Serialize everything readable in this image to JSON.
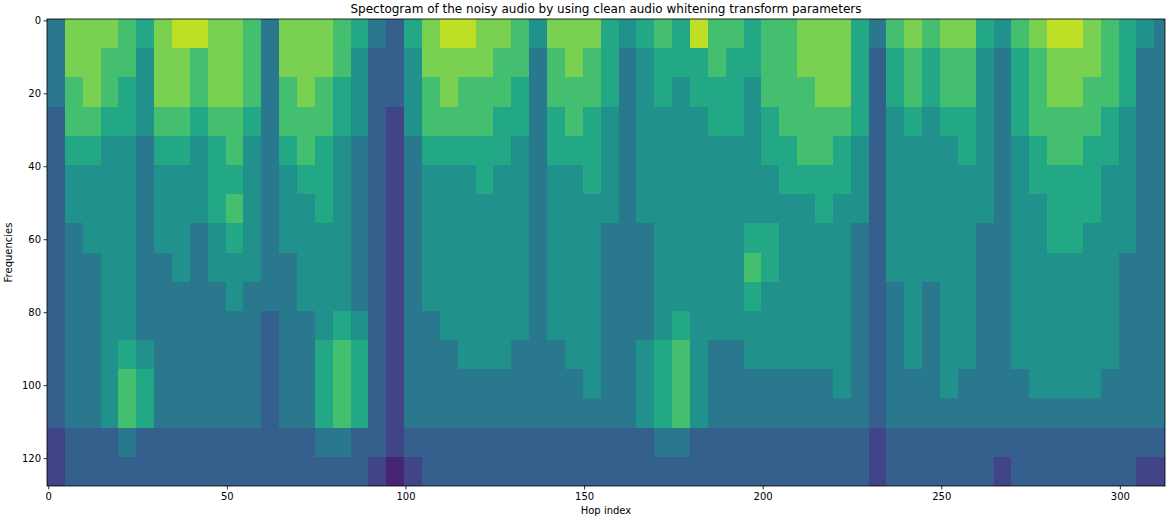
{
  "chart_data": {
    "type": "heatmap",
    "title": "Spectogram of the noisy audio by using clean audio whitening transform parameters",
    "x_label": "Hop index",
    "y_label": "Frequencies",
    "xlim": [
      -0.5,
      312.5
    ],
    "ylim": [
      127.5,
      -0.5
    ],
    "xticks": [
      0,
      50,
      100,
      150,
      200,
      250,
      300
    ],
    "yticks": [
      0,
      20,
      40,
      60,
      80,
      100,
      120
    ],
    "color_range": [
      0,
      10
    ],
    "x_edges": [
      -0.5,
      4.5,
      9.5,
      14.5,
      19.5,
      24.5,
      29.5,
      34.5,
      39.5,
      44.5,
      49.5,
      54.5,
      59.5,
      64.5,
      69.5,
      74.5,
      79.5,
      84.5,
      89.5,
      94.5,
      99.5,
      104.5,
      109.5,
      114.5,
      119.5,
      124.5,
      129.5,
      134.5,
      139.5,
      144.5,
      149.5,
      154.5,
      159.5,
      164.5,
      169.5,
      174.5,
      179.5,
      184.5,
      189.5,
      194.5,
      199.5,
      204.5,
      209.5,
      214.5,
      219.5,
      224.5,
      229.5,
      234.5,
      239.5,
      244.5,
      249.5,
      254.5,
      259.5,
      264.5,
      269.5,
      274.5,
      279.5,
      284.5,
      289.5,
      294.5,
      299.5,
      304.5,
      309.5,
      314.5
    ],
    "y_edges": [
      -0.5,
      7.5,
      15.5,
      23.5,
      31.5,
      39.5,
      47.5,
      55.5,
      63.5,
      71.5,
      79.5,
      87.5,
      95.5,
      103.5,
      111.5,
      119.5,
      127.5
    ],
    "cells": [
      [
        4,
        4,
        4,
        3,
        3,
        3,
        3,
        3,
        3,
        3,
        3,
        3,
        3,
        3,
        2,
        2
      ],
      [
        8,
        8,
        7,
        7,
        6,
        5,
        5,
        4,
        4,
        4,
        4,
        4,
        4,
        4,
        3,
        3
      ],
      [
        8,
        8,
        8,
        7,
        6,
        5,
        5,
        5,
        4,
        4,
        4,
        4,
        4,
        4,
        3,
        3
      ],
      [
        8,
        7,
        7,
        6,
        5,
        5,
        5,
        5,
        5,
        5,
        5,
        5,
        5,
        5,
        3,
        3
      ],
      [
        7,
        7,
        6,
        6,
        5,
        5,
        5,
        5,
        5,
        5,
        5,
        6,
        7,
        7,
        4,
        3
      ],
      [
        6,
        5,
        5,
        5,
        4,
        4,
        4,
        4,
        4,
        4,
        4,
        5,
        6,
        6,
        3,
        3
      ],
      [
        8,
        8,
        8,
        7,
        6,
        5,
        5,
        5,
        4,
        4,
        4,
        4,
        4,
        4,
        3,
        3
      ],
      [
        9,
        8,
        8,
        7,
        6,
        5,
        5,
        5,
        5,
        4,
        4,
        4,
        4,
        4,
        3,
        3
      ],
      [
        9,
        7,
        7,
        6,
        5,
        5,
        5,
        4,
        4,
        4,
        4,
        4,
        4,
        4,
        3,
        3
      ],
      [
        8,
        8,
        8,
        7,
        6,
        6,
        6,
        5,
        5,
        4,
        4,
        4,
        4,
        4,
        3,
        3
      ],
      [
        8,
        8,
        8,
        7,
        7,
        6,
        7,
        6,
        5,
        5,
        4,
        4,
        4,
        4,
        3,
        3
      ],
      [
        7,
        7,
        7,
        6,
        5,
        5,
        5,
        5,
        5,
        4,
        4,
        4,
        4,
        4,
        3,
        3
      ],
      [
        4,
        4,
        4,
        4,
        4,
        4,
        4,
        4,
        4,
        4,
        3,
        3,
        3,
        3,
        3,
        3
      ],
      [
        8,
        8,
        7,
        7,
        6,
        5,
        5,
        5,
        4,
        4,
        4,
        4,
        4,
        4,
        3,
        3
      ],
      [
        8,
        8,
        8,
        7,
        7,
        6,
        5,
        5,
        5,
        5,
        4,
        4,
        4,
        4,
        3,
        3
      ],
      [
        8,
        8,
        7,
        7,
        6,
        6,
        6,
        5,
        5,
        5,
        5,
        6,
        6,
        6,
        4,
        3
      ],
      [
        7,
        7,
        6,
        6,
        5,
        5,
        5,
        5,
        5,
        5,
        6,
        7,
        7,
        7,
        4,
        3
      ],
      [
        6,
        5,
        5,
        5,
        4,
        4,
        4,
        4,
        4,
        4,
        5,
        6,
        6,
        6,
        3,
        3
      ],
      [
        4,
        3,
        3,
        3,
        3,
        3,
        3,
        3,
        3,
        3,
        3,
        3,
        3,
        3,
        3,
        2
      ],
      [
        3,
        3,
        3,
        2,
        2,
        2,
        2,
        2,
        2,
        2,
        2,
        2,
        2,
        2,
        2,
        1
      ],
      [
        6,
        5,
        5,
        5,
        4,
        4,
        4,
        4,
        4,
        4,
        4,
        4,
        4,
        4,
        3,
        2
      ],
      [
        8,
        8,
        7,
        7,
        6,
        5,
        5,
        5,
        5,
        5,
        4,
        4,
        4,
        4,
        3,
        3
      ],
      [
        9,
        8,
        8,
        7,
        6,
        5,
        5,
        5,
        5,
        5,
        5,
        4,
        4,
        4,
        3,
        3
      ],
      [
        9,
        8,
        7,
        7,
        6,
        5,
        5,
        5,
        5,
        5,
        5,
        5,
        4,
        4,
        3,
        3
      ],
      [
        8,
        8,
        7,
        7,
        6,
        6,
        5,
        5,
        5,
        5,
        5,
        5,
        4,
        4,
        3,
        3
      ],
      [
        8,
        7,
        7,
        6,
        6,
        5,
        5,
        5,
        5,
        5,
        5,
        5,
        4,
        4,
        3,
        3
      ],
      [
        7,
        7,
        6,
        6,
        5,
        5,
        5,
        5,
        5,
        5,
        5,
        4,
        4,
        4,
        3,
        3
      ],
      [
        5,
        4,
        4,
        4,
        4,
        4,
        4,
        4,
        4,
        4,
        4,
        4,
        4,
        4,
        3,
        3
      ],
      [
        8,
        7,
        7,
        6,
        6,
        5,
        5,
        5,
        5,
        5,
        5,
        4,
        4,
        4,
        3,
        3
      ],
      [
        8,
        8,
        7,
        7,
        6,
        5,
        5,
        5,
        5,
        5,
        5,
        5,
        4,
        4,
        3,
        3
      ],
      [
        8,
        7,
        7,
        6,
        6,
        6,
        5,
        5,
        5,
        5,
        5,
        5,
        5,
        4,
        3,
        3
      ],
      [
        6,
        6,
        6,
        5,
        5,
        5,
        5,
        4,
        4,
        4,
        4,
        4,
        4,
        4,
        3,
        3
      ],
      [
        5,
        4,
        4,
        4,
        4,
        4,
        4,
        4,
        4,
        4,
        4,
        4,
        4,
        4,
        3,
        3
      ],
      [
        6,
        5,
        5,
        5,
        5,
        5,
        5,
        4,
        4,
        4,
        4,
        5,
        5,
        5,
        3,
        3
      ],
      [
        7,
        6,
        6,
        5,
        5,
        5,
        5,
        5,
        5,
        5,
        5,
        6,
        6,
        6,
        4,
        3
      ],
      [
        6,
        6,
        5,
        5,
        5,
        5,
        5,
        5,
        5,
        5,
        6,
        7,
        7,
        7,
        4,
        3
      ],
      [
        9,
        6,
        6,
        5,
        5,
        5,
        5,
        5,
        5,
        5,
        5,
        5,
        5,
        5,
        3,
        3
      ],
      [
        7,
        7,
        6,
        6,
        5,
        5,
        5,
        5,
        5,
        5,
        5,
        4,
        4,
        4,
        3,
        3
      ],
      [
        7,
        6,
        6,
        6,
        5,
        5,
        5,
        5,
        5,
        5,
        5,
        4,
        4,
        4,
        3,
        3
      ],
      [
        6,
        6,
        5,
        5,
        5,
        5,
        5,
        6,
        7,
        6,
        5,
        5,
        4,
        4,
        3,
        3
      ],
      [
        7,
        7,
        7,
        6,
        6,
        5,
        5,
        6,
        6,
        5,
        5,
        5,
        4,
        4,
        3,
        3
      ],
      [
        7,
        7,
        7,
        7,
        6,
        6,
        5,
        5,
        5,
        5,
        5,
        5,
        4,
        4,
        3,
        3
      ],
      [
        8,
        8,
        7,
        7,
        7,
        6,
        5,
        5,
        5,
        5,
        5,
        5,
        4,
        4,
        3,
        3
      ],
      [
        8,
        8,
        8,
        7,
        7,
        6,
        6,
        5,
        5,
        5,
        5,
        5,
        4,
        4,
        3,
        3
      ],
      [
        8,
        8,
        8,
        7,
        6,
        6,
        5,
        5,
        5,
        5,
        5,
        5,
        5,
        4,
        3,
        3
      ],
      [
        6,
        6,
        6,
        6,
        5,
        5,
        5,
        4,
        4,
        4,
        4,
        4,
        4,
        4,
        3,
        3
      ],
      [
        4,
        3,
        3,
        3,
        3,
        3,
        3,
        3,
        3,
        3,
        3,
        3,
        3,
        3,
        2,
        2
      ],
      [
        7,
        6,
        6,
        5,
        5,
        5,
        5,
        5,
        5,
        4,
        4,
        4,
        4,
        4,
        3,
        3
      ],
      [
        8,
        7,
        7,
        6,
        5,
        5,
        5,
        5,
        5,
        5,
        5,
        5,
        4,
        4,
        3,
        3
      ],
      [
        7,
        6,
        6,
        5,
        5,
        5,
        5,
        5,
        5,
        4,
        4,
        4,
        4,
        4,
        3,
        3
      ],
      [
        8,
        7,
        7,
        6,
        5,
        5,
        5,
        5,
        5,
        5,
        5,
        5,
        5,
        4,
        3,
        3
      ],
      [
        8,
        7,
        7,
        6,
        6,
        5,
        5,
        5,
        5,
        5,
        5,
        5,
        4,
        4,
        3,
        3
      ],
      [
        6,
        5,
        5,
        5,
        5,
        5,
        5,
        4,
        4,
        4,
        4,
        4,
        4,
        4,
        3,
        3
      ],
      [
        5,
        4,
        4,
        4,
        4,
        4,
        4,
        4,
        4,
        4,
        4,
        4,
        4,
        4,
        3,
        2
      ],
      [
        7,
        6,
        6,
        6,
        5,
        5,
        5,
        5,
        5,
        5,
        5,
        5,
        4,
        4,
        3,
        3
      ],
      [
        8,
        7,
        7,
        7,
        6,
        6,
        5,
        5,
        5,
        5,
        5,
        5,
        5,
        4,
        3,
        3
      ],
      [
        9,
        8,
        8,
        7,
        7,
        6,
        6,
        6,
        5,
        5,
        5,
        5,
        5,
        4,
        3,
        3
      ],
      [
        9,
        8,
        8,
        7,
        7,
        6,
        6,
        6,
        5,
        5,
        5,
        5,
        5,
        4,
        3,
        3
      ],
      [
        8,
        8,
        7,
        7,
        6,
        6,
        6,
        5,
        5,
        5,
        5,
        5,
        5,
        4,
        3,
        3
      ],
      [
        7,
        7,
        7,
        6,
        6,
        5,
        5,
        5,
        5,
        5,
        5,
        5,
        4,
        4,
        3,
        3
      ],
      [
        6,
        6,
        6,
        5,
        5,
        5,
        5,
        5,
        4,
        4,
        4,
        4,
        4,
        4,
        3,
        3
      ],
      [
        5,
        4,
        4,
        4,
        4,
        4,
        4,
        4,
        4,
        4,
        4,
        4,
        4,
        4,
        3,
        2
      ],
      [
        4,
        4,
        4,
        4,
        4,
        4,
        4,
        4,
        4,
        4,
        4,
        4,
        4,
        4,
        3,
        2
      ]
    ]
  }
}
